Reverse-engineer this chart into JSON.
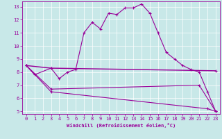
{
  "xlabel": "Windchill (Refroidissement éolien,°C)",
  "bg_color": "#c8e8e8",
  "line_color": "#990099",
  "xlim": [
    -0.5,
    23.5
  ],
  "ylim": [
    4.8,
    13.4
  ],
  "yticks": [
    5,
    6,
    7,
    8,
    9,
    10,
    11,
    12,
    13
  ],
  "xticks": [
    0,
    1,
    2,
    3,
    4,
    5,
    6,
    7,
    8,
    9,
    10,
    11,
    12,
    13,
    14,
    15,
    16,
    17,
    18,
    19,
    20,
    21,
    22,
    23
  ],
  "series1_x": [
    0,
    1,
    3,
    4,
    5,
    6,
    7,
    8,
    9,
    10,
    11,
    12,
    13,
    14,
    15,
    16,
    17,
    18,
    19,
    20,
    21,
    22,
    23
  ],
  "series1_y": [
    8.5,
    7.8,
    8.3,
    7.5,
    8.0,
    8.2,
    11.0,
    11.8,
    11.3,
    12.5,
    12.4,
    12.9,
    12.9,
    13.2,
    12.5,
    11.0,
    9.5,
    9.0,
    8.5,
    8.2,
    8.0,
    6.5,
    5.0
  ],
  "series2_x": [
    0,
    3,
    23
  ],
  "series2_y": [
    8.5,
    8.3,
    8.1
  ],
  "series3_x": [
    0,
    3,
    21,
    23
  ],
  "series3_y": [
    8.5,
    6.7,
    7.0,
    5.0
  ],
  "series4_x": [
    0,
    3,
    22,
    23
  ],
  "series4_y": [
    8.5,
    6.5,
    5.2,
    5.0
  ],
  "tick_fontsize": 5,
  "xlabel_fontsize": 5,
  "marker_size": 3,
  "linewidth": 0.8
}
